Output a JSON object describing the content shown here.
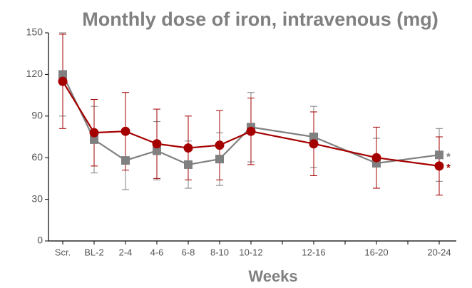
{
  "chart_data": {
    "type": "line",
    "title": "Monthly dose of iron, intravenous (mg)",
    "x_label": "Weeks",
    "categories": [
      "Scr.",
      "BL-2",
      "2-4",
      "4-6",
      "6-8",
      "8-10",
      "10-12",
      null,
      "12-16",
      null,
      "16-20",
      null,
      "20-24"
    ],
    "series": [
      {
        "color": "#808080",
        "marker": "square",
        "note": "*",
        "values": [
          120,
          73,
          58,
          65,
          55,
          59,
          82,
          null,
          75,
          null,
          56,
          null,
          62
        ],
        "errors": [
          30,
          24,
          21,
          21,
          17,
          19,
          25,
          null,
          22,
          null,
          18,
          null,
          19
        ]
      },
      {
        "color": "#a50000",
        "marker": "circle",
        "note": "*",
        "values": [
          115,
          78,
          79,
          70,
          67,
          69,
          79,
          null,
          70,
          null,
          60,
          null,
          54
        ],
        "errors": [
          34,
          24,
          28,
          25,
          23,
          25,
          24,
          null,
          23,
          null,
          22,
          null,
          21
        ]
      }
    ],
    "ylim": [
      0,
      150
    ],
    "yticks": [
      0,
      30,
      60,
      90,
      120,
      150
    ]
  }
}
